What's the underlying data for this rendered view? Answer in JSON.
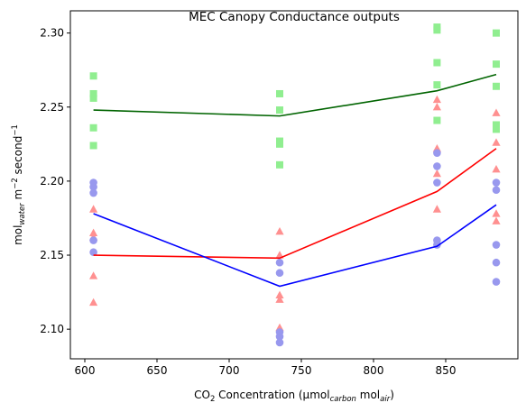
{
  "chart_data": {
    "type": "scatter",
    "title": "MEC Canopy Conductance outputs",
    "xlabel": {
      "base": "CO",
      "sub1": "2",
      "mid": " Concentration (µmol",
      "sub2": "carbon",
      "mid2": " mol",
      "sub3": "air",
      "end": ")"
    },
    "ylabel": {
      "base": "mol",
      "sub": "water",
      "mid": " m",
      "sup1": "−2",
      "mid2": " second",
      "sup2": "−1"
    },
    "xlim": [
      590,
      900
    ],
    "ylim": [
      2.08,
      2.315
    ],
    "x_ticks": [
      600,
      650,
      700,
      750,
      800,
      850
    ],
    "y_ticks": [
      2.1,
      2.15,
      2.2,
      2.25,
      2.3
    ],
    "grid": false,
    "x": [
      606,
      735,
      844,
      885
    ],
    "series": [
      {
        "color_point": "#90ee90",
        "color_line": "#006400",
        "marker": "square",
        "line": [
          2.248,
          2.244,
          2.261,
          2.272
        ],
        "points": [
          [
            2.271,
            2.259,
            2.256,
            2.236,
            2.224
          ],
          [
            2.259,
            2.248,
            2.227,
            2.225,
            2.211
          ],
          [
            2.304,
            2.302,
            2.28,
            2.265,
            2.241
          ],
          [
            2.3,
            2.279,
            2.264,
            2.238,
            2.235
          ]
        ]
      },
      {
        "color_point": "#ff9090",
        "color_line": "#ff0000",
        "marker": "triangle",
        "line": [
          2.15,
          2.148,
          2.193,
          2.222
        ],
        "points": [
          [
            2.181,
            2.165,
            2.162,
            2.136,
            2.118
          ],
          [
            2.166,
            2.15,
            2.123,
            2.12,
            2.101
          ],
          [
            2.255,
            2.25,
            2.222,
            2.205,
            2.181
          ],
          [
            2.246,
            2.226,
            2.208,
            2.178,
            2.173
          ]
        ]
      },
      {
        "color_point": "#9898ee",
        "color_line": "#0000ff",
        "marker": "circle",
        "line": [
          2.178,
          2.129,
          2.156,
          2.184
        ],
        "points": [
          [
            2.199,
            2.196,
            2.192,
            2.16,
            2.152
          ],
          [
            2.145,
            2.138,
            2.098,
            2.095,
            2.091
          ],
          [
            2.219,
            2.21,
            2.199,
            2.16,
            2.157
          ],
          [
            2.199,
            2.194,
            2.157,
            2.145,
            2.132
          ]
        ]
      }
    ]
  }
}
